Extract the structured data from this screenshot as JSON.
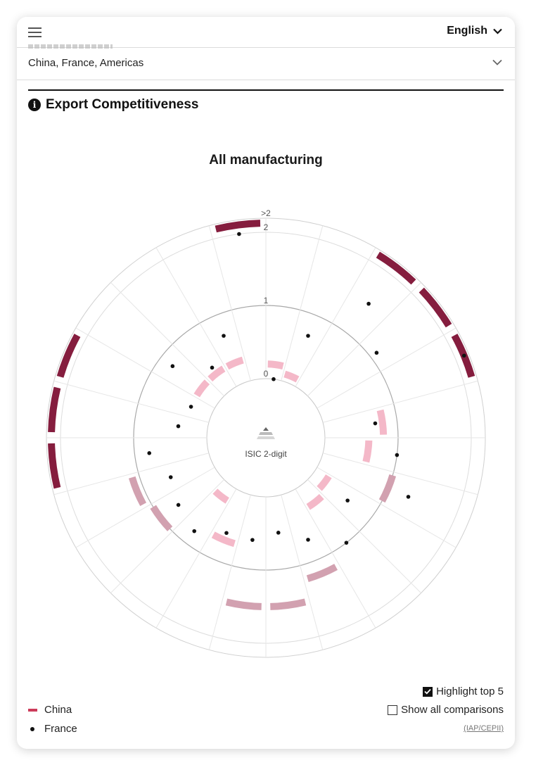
{
  "header": {
    "language": "English",
    "language_icon": "chevron-down-icon",
    "menu_icon": "hamburger-icon"
  },
  "selector": {
    "value": "China, France, Americas",
    "icon": "chevron-down-icon"
  },
  "section": {
    "title": "Export Competitiveness",
    "icon": "info-icon"
  },
  "center_label": "ISIC 2-digit",
  "legend": {
    "china": "China",
    "france": "France"
  },
  "options": {
    "highlight_top5": "Highlight top 5",
    "highlight_checked": true,
    "show_all": "Show all comparisons",
    "show_all_checked": false
  },
  "source": "(IAP/CEPII)",
  "colors": {
    "china_top": "#851d3e",
    "china_mid": "#d2a1b0",
    "china_low": "#f4b8c8",
    "france": "#111111"
  },
  "chart_data": {
    "type": "radial",
    "title": "All manufacturing",
    "axis_label": "ISIC 2-digit",
    "rlim": [
      0,
      2
    ],
    "ring_labels": [
      "0",
      "1",
      "2",
      ">2"
    ],
    "sectors": 24,
    "series": [
      {
        "name": "China",
        "values": [
          0.2,
          0.1,
          2.5,
          2.2,
          2.5,
          0.8,
          0.6,
          1.0,
          0.2,
          0.3,
          1.2,
          1.5,
          1.5,
          0.7,
          0.2,
          1.0,
          1.1,
          2.5,
          2.2,
          2.5,
          0.3,
          0.3,
          0.3,
          2.5
        ]
      },
      {
        "name": "France",
        "values": [
          0.0,
          0.7,
          1.5,
          1.1,
          2.3,
          0.7,
          1.0,
          1.3,
          0.6,
          1.0,
          0.7,
          0.5,
          0.6,
          0.6,
          0.8,
          0.7,
          0.6,
          0.8,
          0.4,
          0.3,
          0.8,
          0.4,
          0.7,
          2.0
        ]
      }
    ],
    "highlight": [
      3,
      5,
      18,
      20,
      24
    ],
    "grid": true
  }
}
